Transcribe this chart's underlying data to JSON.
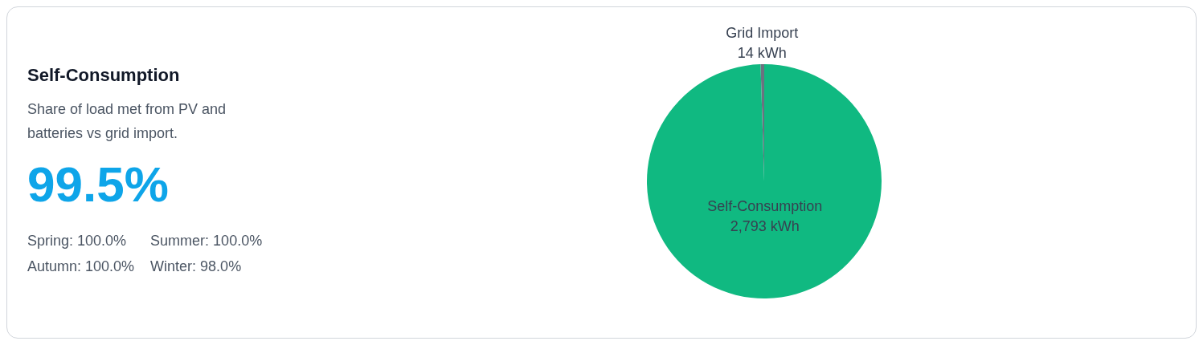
{
  "chart_data": {
    "type": "pie",
    "title": "Self-Consumption",
    "subtitle": "Share of load met from PV and batteries vs grid import.",
    "categories": [
      "Grid Import",
      "Self-Consumption"
    ],
    "values": [
      14,
      2793
    ],
    "value_labels": [
      "14 kWh",
      "2,793 kWh"
    ],
    "colors": [
      "#6b7280",
      "#10b981"
    ],
    "annotations": [
      "99.5%",
      "Spring: 100.0%",
      "Summer: 100.0%",
      "Autumn: 100.0%",
      "Winter: 98.0%"
    ]
  }
}
